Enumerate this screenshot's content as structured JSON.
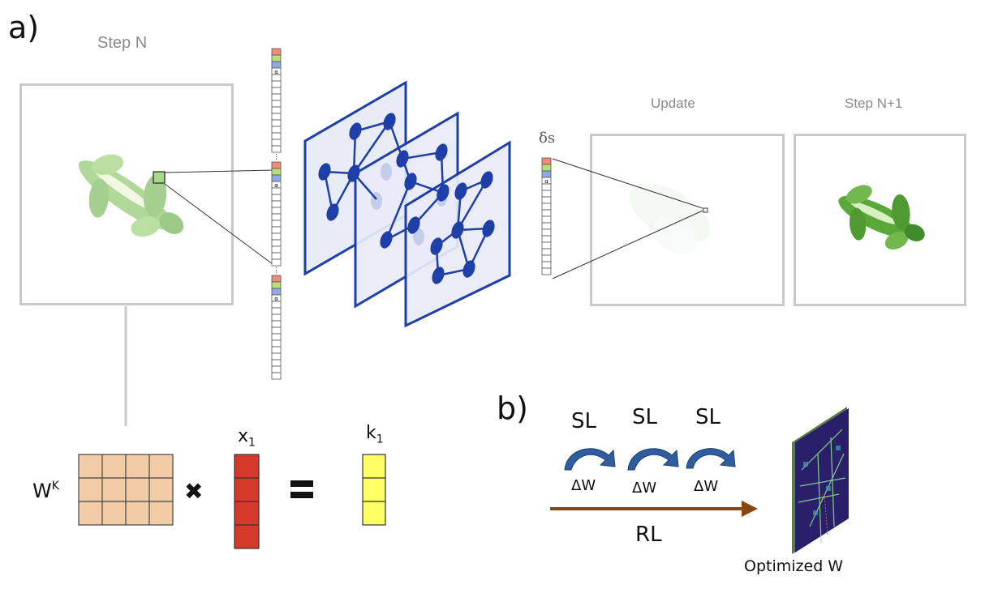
{
  "panel_a": {
    "label": "a)",
    "step_n_caption": "Step N",
    "update_caption": "Update",
    "step_n1_caption": "Step N+1",
    "delta_s_label": "δs",
    "alpha_symbol": "α"
  },
  "equation": {
    "matrix_symbol": "W",
    "matrix_superscript": "K",
    "vector_x": "x",
    "vector_x_sub": "1",
    "vector_k": "k",
    "vector_k_sub": "1"
  },
  "panel_b": {
    "label": "b)",
    "sl_labels": [
      "SL",
      "SL",
      "SL"
    ],
    "dw_labels": [
      "ΔW",
      "ΔW",
      "ΔW"
    ],
    "rl_label": "RL",
    "output_caption": "Optimized W"
  },
  "colors": {
    "graph_blue": "#1f3fa8",
    "plane_fill": "#e8ecf7",
    "matrix_fill": "#f2cca6",
    "x_vector_fill": "#d63a2b",
    "k_vector_fill": "#ffff66",
    "arrow_blue": "#2f5d9e",
    "rl_arrow": "#8b4513",
    "lizard_green": "#5aa83a"
  }
}
